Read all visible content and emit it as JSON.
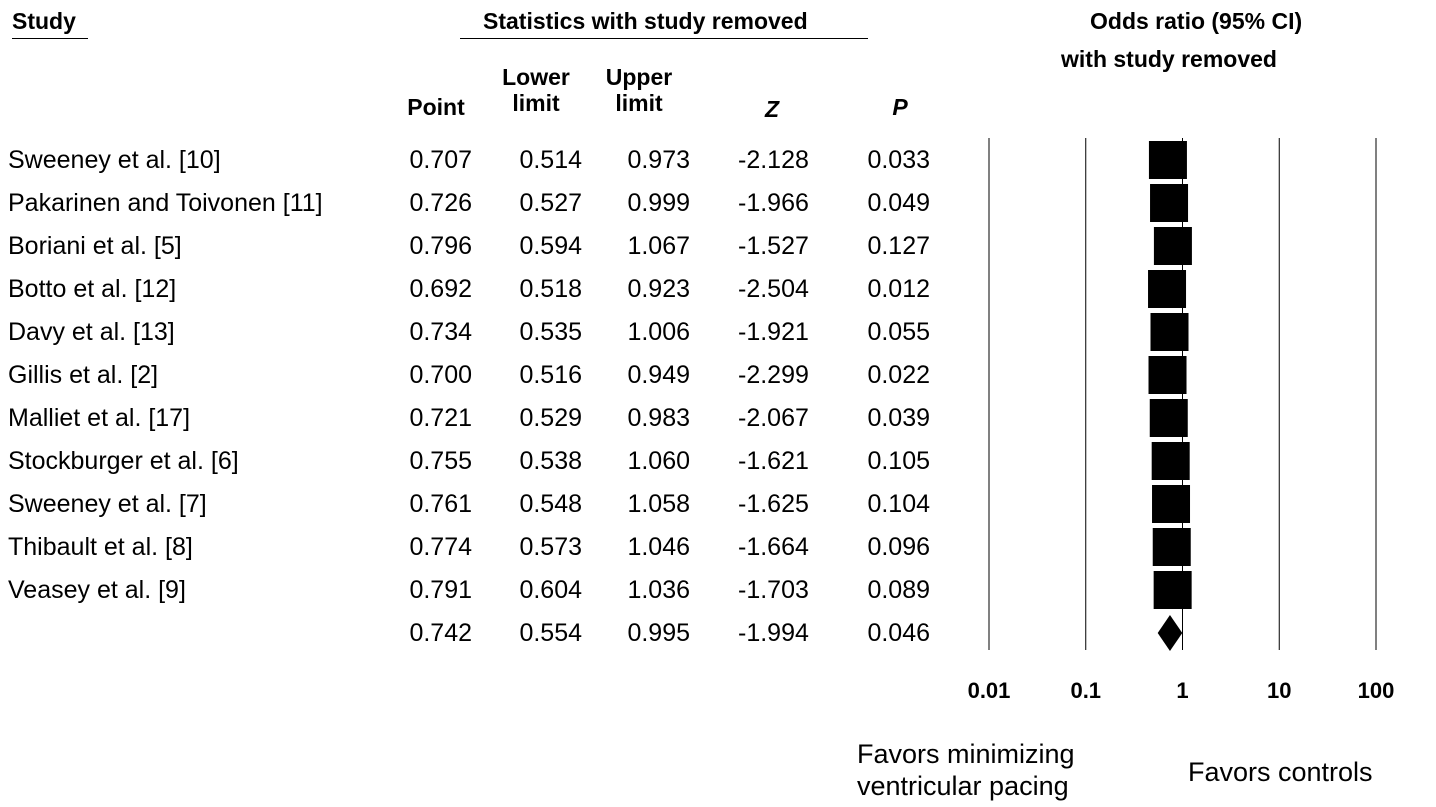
{
  "headers": {
    "study": "Study",
    "stats_group": "Statistics with study removed",
    "odds_ratio_line1": "Odds ratio (95% CI)",
    "odds_ratio_line2": "with study removed",
    "point": "Point",
    "lower_1": "Lower",
    "lower_2": "limit",
    "upper_1": "Upper",
    "upper_2": "limit",
    "z": "Z",
    "p": "P"
  },
  "rows": [
    {
      "study": "Sweeney et al. [10]",
      "point": "0.707",
      "lower": "0.514",
      "upper": "0.973",
      "z": "-2.128",
      "p": "0.033"
    },
    {
      "study": "Pakarinen and Toivonen [11]",
      "point": "0.726",
      "lower": "0.527",
      "upper": "0.999",
      "z": "-1.966",
      "p": "0.049"
    },
    {
      "study": "Boriani et al. [5]",
      "point": "0.796",
      "lower": "0.594",
      "upper": "1.067",
      "z": "-1.527",
      "p": "0.127"
    },
    {
      "study": "Botto et al. [12]",
      "point": "0.692",
      "lower": "0.518",
      "upper": "0.923",
      "z": "-2.504",
      "p": "0.012"
    },
    {
      "study": "Davy et al. [13]",
      "point": "0.734",
      "lower": "0.535",
      "upper": "1.006",
      "z": "-1.921",
      "p": "0.055"
    },
    {
      "study": "Gillis et al. [2]",
      "point": "0.700",
      "lower": "0.516",
      "upper": "0.949",
      "z": "-2.299",
      "p": "0.022"
    },
    {
      "study": "Malliet et al. [17]",
      "point": "0.721",
      "lower": "0.529",
      "upper": "0.983",
      "z": "-2.067",
      "p": "0.039"
    },
    {
      "study": "Stockburger et al. [6]",
      "point": "0.755",
      "lower": "0.538",
      "upper": "1.060",
      "z": "-1.621",
      "p": "0.105"
    },
    {
      "study": "Sweeney et al. [7]",
      "point": "0.761",
      "lower": "0.548",
      "upper": "1.058",
      "z": "-1.625",
      "p": "0.104"
    },
    {
      "study": "Thibault et al. [8]",
      "point": "0.774",
      "lower": "0.573",
      "upper": "1.046",
      "z": "-1.664",
      "p": "0.096"
    },
    {
      "study": "Veasey et al. [9]",
      "point": "0.791",
      "lower": "0.604",
      "upper": "1.036",
      "z": "-1.703",
      "p": "0.089"
    },
    {
      "study": "",
      "point": "0.742",
      "lower": "0.554",
      "upper": "0.995",
      "z": "-1.994",
      "p": "0.046"
    }
  ],
  "x_labels": {
    "left_1": "Favors minimizing",
    "left_2": "ventricular pacing",
    "right": "Favors controls"
  },
  "chart_data": {
    "type": "forest",
    "x_scale": "log",
    "xlim": [
      0.01,
      100
    ],
    "ticks": [
      0.01,
      0.1,
      1,
      10,
      100
    ],
    "tick_labels": [
      "0.01",
      "0.1",
      "1",
      "10",
      "100"
    ],
    "gridlines": true,
    "marker_color": "#000000",
    "points": [
      0.707,
      0.726,
      0.796,
      0.692,
      0.734,
      0.7,
      0.721,
      0.755,
      0.761,
      0.774,
      0.791
    ],
    "lower": [
      0.514,
      0.527,
      0.594,
      0.518,
      0.535,
      0.516,
      0.529,
      0.538,
      0.548,
      0.573,
      0.604
    ],
    "upper": [
      0.973,
      0.999,
      1.067,
      0.923,
      1.006,
      0.949,
      0.983,
      1.06,
      1.058,
      1.046,
      1.036
    ],
    "summary": {
      "point": 0.742,
      "lower": 0.554,
      "upper": 0.995
    }
  }
}
